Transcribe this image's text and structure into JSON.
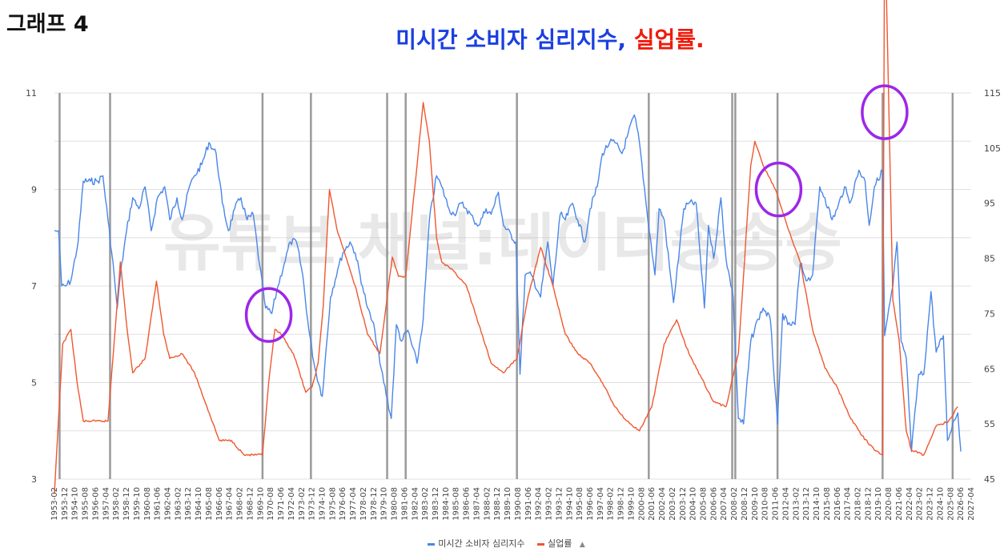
{
  "corner_label": "그래프 4",
  "title": {
    "part1": "미시간 소비자 심리지수",
    "sep": ", ",
    "part2": "실업률."
  },
  "watermark": "유튜브 채널:데이터송송송",
  "colors": {
    "sentiment": "#4a86e8",
    "unemployment": "#f0572f",
    "recession_line": "#888888",
    "circle": "#9d27e8",
    "grid": "#e0e0e0"
  },
  "chart_data": {
    "type": "line",
    "title": "미시간 소비자 심리지수, 실업률.",
    "x_start": "1953-02",
    "x_end": "2027-04",
    "y_left": {
      "min": 3,
      "max": 11,
      "ticks": [
        "3",
        "5",
        "7",
        "9",
        "11"
      ]
    },
    "y_right": {
      "min": 45,
      "max": 115,
      "ticks": [
        "45",
        "55",
        "65",
        "75",
        "85",
        "95",
        "105",
        "115"
      ]
    },
    "x_tick_labels": [
      "1953-02",
      "1953-12",
      "1954-10",
      "1955-08",
      "1956-06",
      "1957-04",
      "1958-02",
      "1958-12",
      "1959-10",
      "1960-08",
      "1961-06",
      "1962-04",
      "1963-02",
      "1963-12",
      "1964-10",
      "1965-08",
      "1966-06",
      "1967-04",
      "1968-02",
      "1968-12",
      "1969-10",
      "1970-08",
      "1971-06",
      "1972-04",
      "1973-02",
      "1973-12",
      "1974-10",
      "1975-08",
      "1976-06",
      "1977-04",
      "1978-02",
      "1978-12",
      "1979-10",
      "1980-08",
      "1981-06",
      "1982-04",
      "1983-02",
      "1983-12",
      "1984-10",
      "1985-08",
      "1986-06",
      "1987-04",
      "1988-02",
      "1988-12",
      "1989-10",
      "1990-08",
      "1991-06",
      "1992-04",
      "1993-02",
      "1993-12",
      "1994-10",
      "1995-08",
      "1996-06",
      "1997-04",
      "1998-02",
      "1998-12",
      "1999-10",
      "2000-08",
      "2001-06",
      "2002-04",
      "2003-02",
      "2003-12",
      "2004-10",
      "2005-08",
      "2006-06",
      "2007-04",
      "2008-02",
      "2008-12",
      "2009-10",
      "2010-08",
      "2011-06",
      "2012-04",
      "2013-02",
      "2013-12",
      "2014-10",
      "2015-08",
      "2016-06",
      "2017-04",
      "2018-02",
      "2018-12",
      "2019-10",
      "2020-08",
      "2021-06",
      "2022-04",
      "2023-02",
      "2023-12",
      "2024-10",
      "2025-08",
      "2026-06",
      "2027-04"
    ],
    "recession_lines": [
      "1953-07",
      "1957-08",
      "1969-12",
      "1973-11",
      "1980-01",
      "1981-07",
      "1990-07",
      "2001-03",
      "2007-12",
      "2008-03",
      "2011-08",
      "2020-02",
      "2025-10"
    ],
    "series": [
      {
        "name": "미시간 소비자 심리지수",
        "axis": "right",
        "points": [
          [
            "1953-02",
            90
          ],
          [
            "1953-06",
            90
          ],
          [
            "1953-09",
            80
          ],
          [
            "1954-01",
            80
          ],
          [
            "1954-06",
            81
          ],
          [
            "1955-01",
            88
          ],
          [
            "1955-06",
            99
          ],
          [
            "1956-01",
            99
          ],
          [
            "1956-08",
            99
          ],
          [
            "1957-01",
            100
          ],
          [
            "1957-06",
            92
          ],
          [
            "1957-12",
            82
          ],
          [
            "1958-03",
            76
          ],
          [
            "1958-06",
            82
          ],
          [
            "1958-12",
            90
          ],
          [
            "1959-06",
            96
          ],
          [
            "1959-12",
            94
          ],
          [
            "1960-06",
            98
          ],
          [
            "1960-12",
            90
          ],
          [
            "1961-06",
            96
          ],
          [
            "1962-01",
            98
          ],
          [
            "1962-06",
            92
          ],
          [
            "1963-01",
            96
          ],
          [
            "1963-06",
            92
          ],
          [
            "1964-01",
            98
          ],
          [
            "1964-06",
            100
          ],
          [
            "1965-01",
            102
          ],
          [
            "1965-08",
            106
          ],
          [
            "1966-03",
            104
          ],
          [
            "1966-09",
            95
          ],
          [
            "1967-03",
            90
          ],
          [
            "1967-09",
            94
          ],
          [
            "1968-03",
            96
          ],
          [
            "1968-09",
            92
          ],
          [
            "1969-03",
            93
          ],
          [
            "1969-09",
            84
          ],
          [
            "1970-03",
            76
          ],
          [
            "1970-09",
            75
          ],
          [
            "1971-03",
            80
          ],
          [
            "1971-09",
            84
          ],
          [
            "1972-03",
            88
          ],
          [
            "1972-09",
            88
          ],
          [
            "1973-03",
            82
          ],
          [
            "1973-09",
            72
          ],
          [
            "1974-03",
            65
          ],
          [
            "1974-10",
            60
          ],
          [
            "1975-06",
            78
          ],
          [
            "1976-01",
            83
          ],
          [
            "1976-06",
            86
          ],
          [
            "1977-01",
            88
          ],
          [
            "1977-06",
            86
          ],
          [
            "1978-01",
            80
          ],
          [
            "1978-06",
            76
          ],
          [
            "1979-01",
            72
          ],
          [
            "1979-06",
            66
          ],
          [
            "1980-05",
            56
          ],
          [
            "1980-10",
            73
          ],
          [
            "1981-03",
            70
          ],
          [
            "1981-09",
            72
          ],
          [
            "1982-06",
            66
          ],
          [
            "1982-12",
            74
          ],
          [
            "1983-06",
            92
          ],
          [
            "1984-01",
            100
          ],
          [
            "1984-06",
            98
          ],
          [
            "1985-01",
            94
          ],
          [
            "1985-06",
            93
          ],
          [
            "1986-01",
            95
          ],
          [
            "1986-06",
            94
          ],
          [
            "1987-01",
            92
          ],
          [
            "1987-06",
            91
          ],
          [
            "1988-01",
            94
          ],
          [
            "1988-06",
            93
          ],
          [
            "1989-01",
            97
          ],
          [
            "1989-06",
            91
          ],
          [
            "1990-06",
            88
          ],
          [
            "1990-10",
            64
          ],
          [
            "1991-03",
            82
          ],
          [
            "1991-09",
            82
          ],
          [
            "1992-06",
            78
          ],
          [
            "1993-01",
            88
          ],
          [
            "1993-06",
            80
          ],
          [
            "1994-01",
            93
          ],
          [
            "1994-06",
            92
          ],
          [
            "1995-01",
            95
          ],
          [
            "1995-06",
            92
          ],
          [
            "1996-01",
            88
          ],
          [
            "1996-06",
            94
          ],
          [
            "1997-01",
            98
          ],
          [
            "1997-06",
            104
          ],
          [
            "1998-01",
            106
          ],
          [
            "1998-06",
            106
          ],
          [
            "1999-01",
            104
          ],
          [
            "1999-06",
            107
          ],
          [
            "2000-01",
            111
          ],
          [
            "2000-06",
            106
          ],
          [
            "2001-01",
            94
          ],
          [
            "2001-09",
            82
          ],
          [
            "2002-01",
            94
          ],
          [
            "2002-06",
            92
          ],
          [
            "2003-03",
            77
          ],
          [
            "2003-09",
            87
          ],
          [
            "2004-01",
            94
          ],
          [
            "2004-06",
            95
          ],
          [
            "2005-01",
            95
          ],
          [
            "2005-09",
            76
          ],
          [
            "2006-01",
            91
          ],
          [
            "2006-06",
            85
          ],
          [
            "2007-01",
            96
          ],
          [
            "2007-06",
            85
          ],
          [
            "2008-01",
            78
          ],
          [
            "2008-06",
            56
          ],
          [
            "2008-11",
            55
          ],
          [
            "2009-06",
            70
          ],
          [
            "2010-01",
            74
          ],
          [
            "2010-06",
            76
          ],
          [
            "2011-01",
            74
          ],
          [
            "2011-08",
            55
          ],
          [
            "2012-01",
            75
          ],
          [
            "2012-06",
            73
          ],
          [
            "2013-01",
            73
          ],
          [
            "2013-06",
            84
          ],
          [
            "2014-01",
            81
          ],
          [
            "2014-06",
            82
          ],
          [
            "2015-01",
            98
          ],
          [
            "2015-06",
            96
          ],
          [
            "2016-01",
            92
          ],
          [
            "2016-06",
            94
          ],
          [
            "2017-01",
            98
          ],
          [
            "2017-06",
            95
          ],
          [
            "2018-03",
            101
          ],
          [
            "2018-09",
            99
          ],
          [
            "2019-01",
            91
          ],
          [
            "2019-06",
            98
          ],
          [
            "2020-02",
            101
          ],
          [
            "2020-04",
            71
          ],
          [
            "2020-12",
            80
          ],
          [
            "2021-04",
            88
          ],
          [
            "2021-08",
            70
          ],
          [
            "2022-01",
            67
          ],
          [
            "2022-06",
            50
          ],
          [
            "2023-01",
            64
          ],
          [
            "2023-06",
            64
          ],
          [
            "2024-01",
            79
          ],
          [
            "2024-06",
            68
          ],
          [
            "2025-01",
            71
          ],
          [
            "2025-05",
            52
          ],
          [
            "2025-10",
            55
          ],
          [
            "2026-03",
            57
          ],
          [
            "2026-06",
            50
          ]
        ]
      },
      {
        "name": "실업률",
        "axis": "left",
        "points": [
          [
            "1953-02",
            2.7
          ],
          [
            "1953-10",
            5.8
          ],
          [
            "1954-06",
            6.1
          ],
          [
            "1954-12",
            5.0
          ],
          [
            "1955-06",
            4.2
          ],
          [
            "1956-06",
            4.2
          ],
          [
            "1957-06",
            4.2
          ],
          [
            "1958-06",
            7.5
          ],
          [
            "1958-12",
            6.2
          ],
          [
            "1959-06",
            5.2
          ],
          [
            "1960-06",
            5.5
          ],
          [
            "1961-05",
            7.1
          ],
          [
            "1961-12",
            6.0
          ],
          [
            "1962-06",
            5.5
          ],
          [
            "1963-06",
            5.6
          ],
          [
            "1964-06",
            5.2
          ],
          [
            "1965-06",
            4.5
          ],
          [
            "1966-06",
            3.8
          ],
          [
            "1967-06",
            3.8
          ],
          [
            "1968-06",
            3.5
          ],
          [
            "1969-06",
            3.5
          ],
          [
            "1969-12",
            3.5
          ],
          [
            "1970-06",
            5.0
          ],
          [
            "1970-12",
            6.1
          ],
          [
            "1971-06",
            6.0
          ],
          [
            "1972-06",
            5.6
          ],
          [
            "1973-06",
            4.8
          ],
          [
            "1973-12",
            4.9
          ],
          [
            "1974-06",
            5.4
          ],
          [
            "1974-11",
            6.6
          ],
          [
            "1975-05",
            9.0
          ],
          [
            "1975-12",
            8.2
          ],
          [
            "1976-06",
            7.8
          ],
          [
            "1977-06",
            7.0
          ],
          [
            "1978-06",
            6.0
          ],
          [
            "1979-06",
            5.6
          ],
          [
            "1980-06",
            7.6
          ],
          [
            "1980-12",
            7.2
          ],
          [
            "1981-07",
            7.2
          ],
          [
            "1982-06",
            9.5
          ],
          [
            "1982-12",
            10.8
          ],
          [
            "1983-06",
            10.0
          ],
          [
            "1984-01",
            8.0
          ],
          [
            "1984-06",
            7.5
          ],
          [
            "1985-06",
            7.3
          ],
          [
            "1986-06",
            7.0
          ],
          [
            "1987-06",
            6.2
          ],
          [
            "1988-06",
            5.4
          ],
          [
            "1989-06",
            5.2
          ],
          [
            "1990-07",
            5.5
          ],
          [
            "1991-06",
            6.8
          ],
          [
            "1992-06",
            7.8
          ],
          [
            "1993-06",
            7.0
          ],
          [
            "1994-06",
            6.0
          ],
          [
            "1995-06",
            5.6
          ],
          [
            "1996-06",
            5.4
          ],
          [
            "1997-06",
            5.0
          ],
          [
            "1998-06",
            4.5
          ],
          [
            "1999-06",
            4.2
          ],
          [
            "2000-06",
            4.0
          ],
          [
            "2001-06",
            4.5
          ],
          [
            "2002-06",
            5.8
          ],
          [
            "2003-06",
            6.3
          ],
          [
            "2004-06",
            5.6
          ],
          [
            "2005-06",
            5.1
          ],
          [
            "2006-06",
            4.6
          ],
          [
            "2007-06",
            4.5
          ],
          [
            "2008-06",
            5.6
          ],
          [
            "2009-06",
            9.5
          ],
          [
            "2009-10",
            10.0
          ],
          [
            "2010-06",
            9.5
          ],
          [
            "2011-06",
            9.0
          ],
          [
            "2012-06",
            8.2
          ],
          [
            "2013-06",
            7.5
          ],
          [
            "2014-06",
            6.1
          ],
          [
            "2015-06",
            5.3
          ],
          [
            "2016-06",
            4.9
          ],
          [
            "2017-06",
            4.3
          ],
          [
            "2018-06",
            3.9
          ],
          [
            "2019-06",
            3.6
          ],
          [
            "2020-02",
            3.5
          ],
          [
            "2020-04",
            14.8
          ],
          [
            "2020-12",
            6.7
          ],
          [
            "2021-06",
            5.9
          ],
          [
            "2022-01",
            4.0
          ],
          [
            "2022-06",
            3.6
          ],
          [
            "2023-06",
            3.5
          ],
          [
            "2024-06",
            4.1
          ],
          [
            "2025-06",
            4.2
          ],
          [
            "2026-03",
            4.5
          ]
        ]
      }
    ],
    "annotations": [
      {
        "type": "circle",
        "at": "1970-06",
        "axis": "left",
        "value": 6.4
      },
      {
        "type": "circle",
        "at": "2011-09",
        "axis": "left",
        "value": 9.0
      },
      {
        "type": "circle",
        "at": "2020-04",
        "axis": "left",
        "value": 10.6
      }
    ],
    "legend": {
      "position": "bottom",
      "extra": "▲"
    },
    "grid": true
  }
}
